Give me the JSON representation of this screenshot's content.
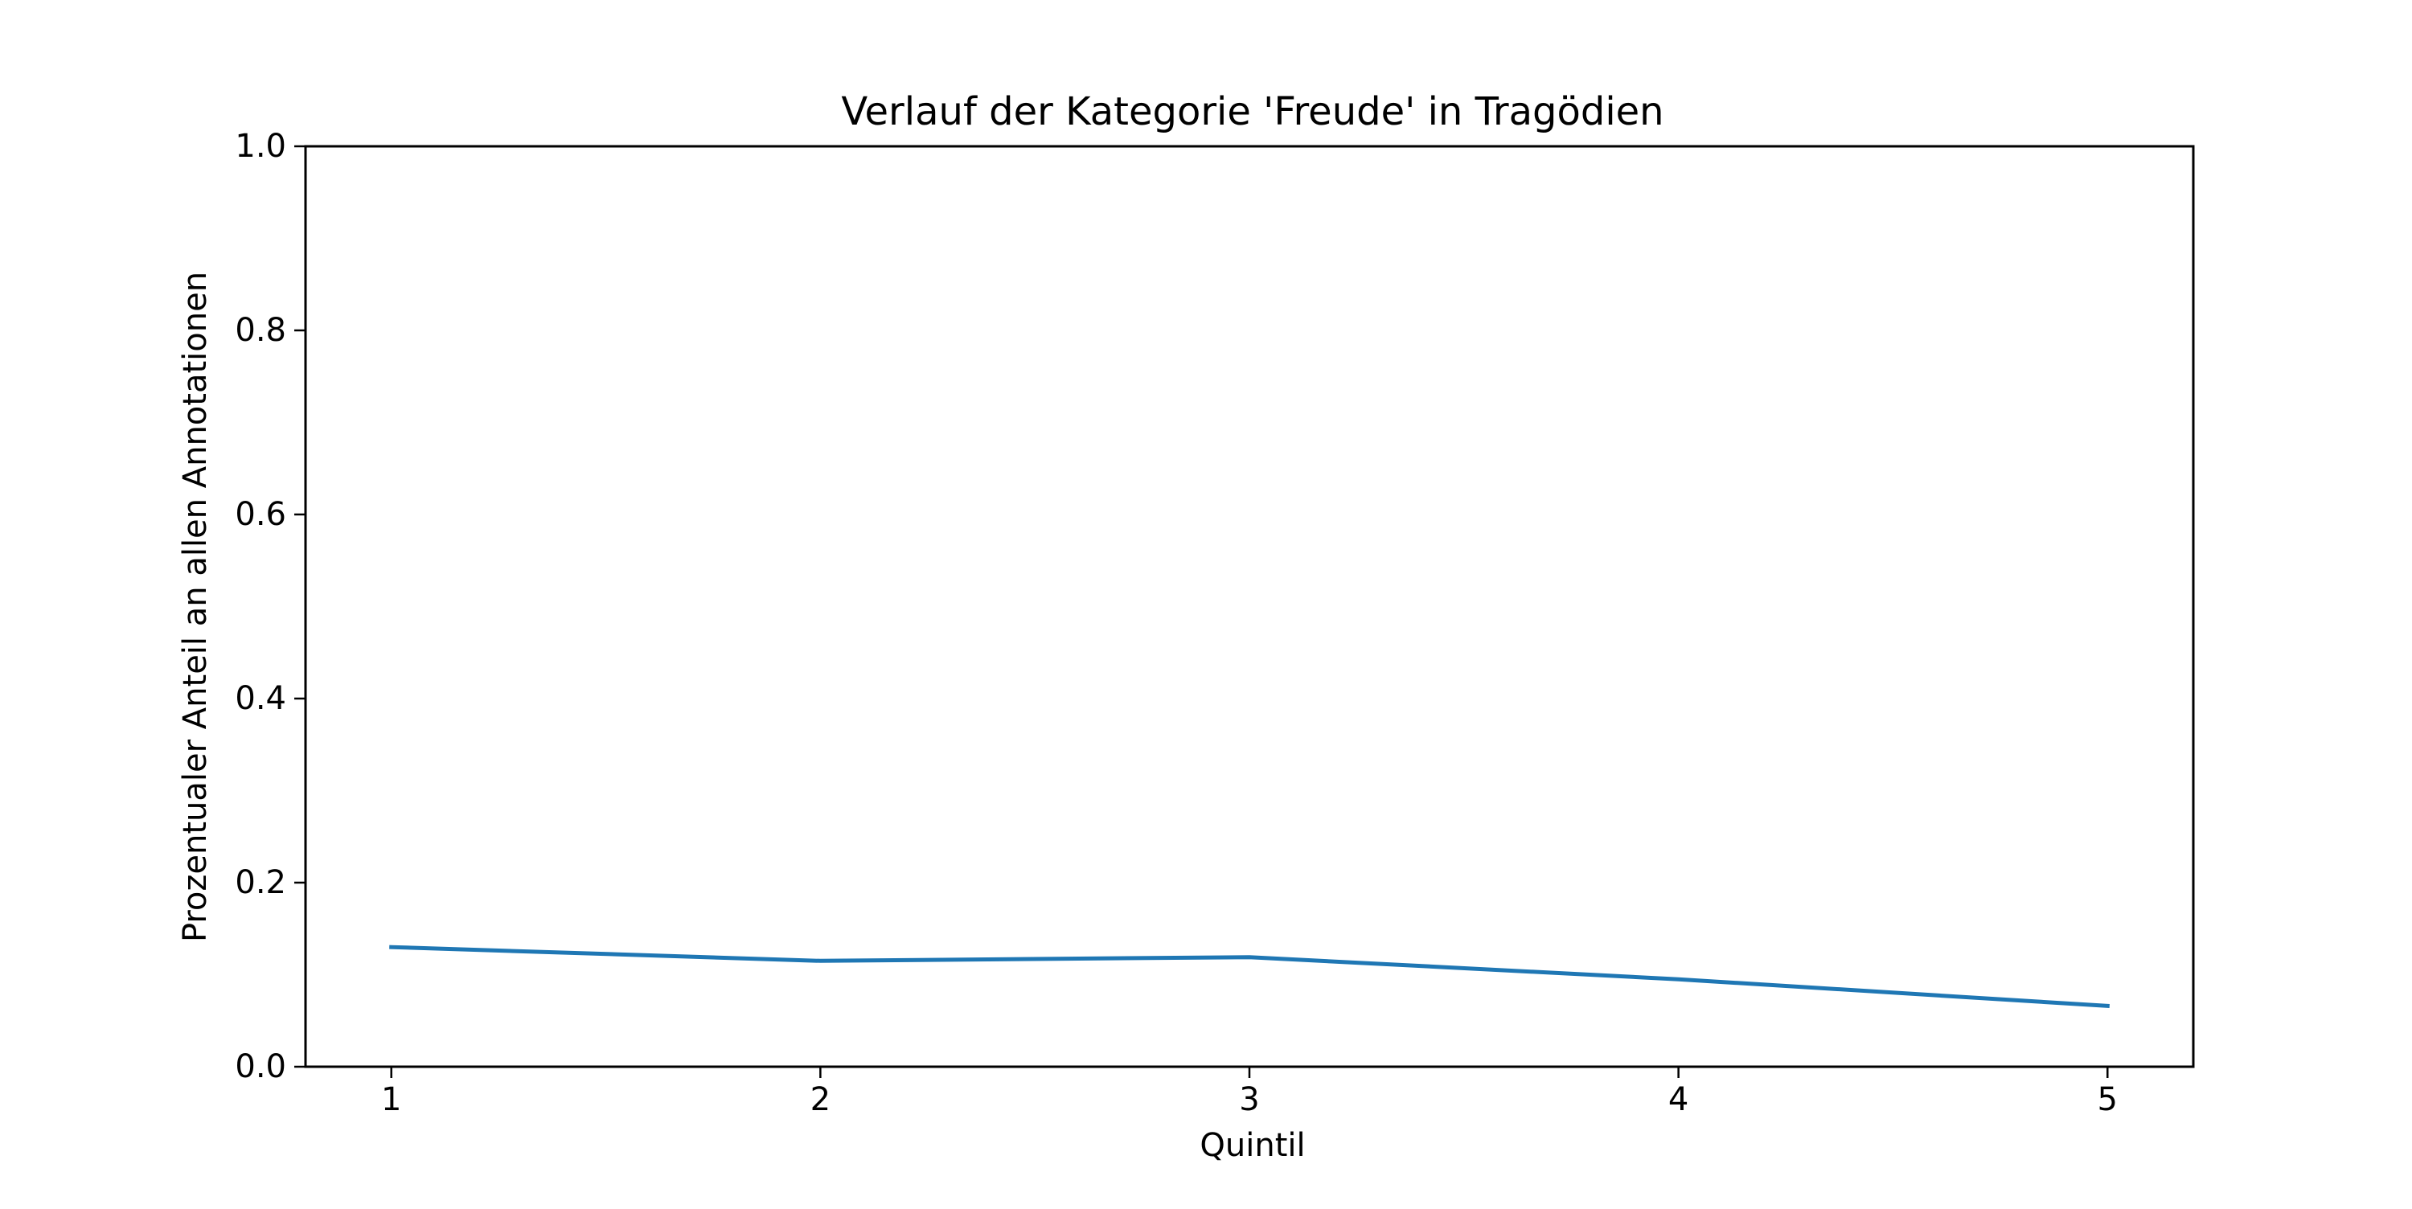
{
  "chart_data": {
    "type": "line",
    "title": "Verlauf der Kategorie 'Freude' in Tragödien",
    "xlabel": "Quintil",
    "ylabel": "Prozentualer Anteil an allen Annotationen",
    "x": [
      1,
      2,
      3,
      4,
      5
    ],
    "x_tick_labels": [
      "1",
      "2",
      "3",
      "4",
      "5"
    ],
    "xlim": [
      0.8,
      5.2
    ],
    "ylim": [
      0.0,
      1.0
    ],
    "y_ticks": [
      0.0,
      0.2,
      0.4,
      0.6,
      0.8,
      1.0
    ],
    "y_tick_labels": [
      "0.0",
      "0.2",
      "0.4",
      "0.6",
      "0.8",
      "1.0"
    ],
    "grid": false,
    "series": [
      {
        "values": [
          0.13,
          0.115,
          0.119,
          0.095,
          0.066
        ],
        "color": "#1f77b4"
      }
    ]
  }
}
